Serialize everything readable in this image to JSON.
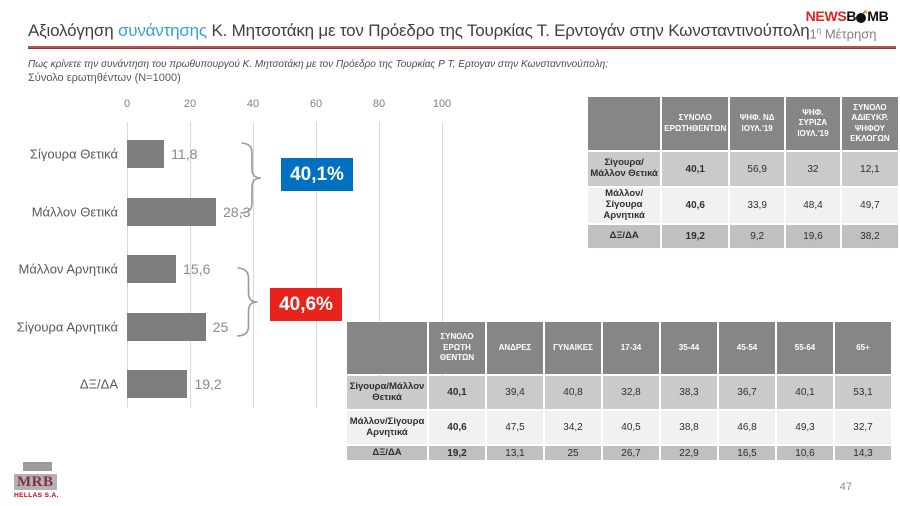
{
  "header": {
    "title_prefix": "Αξιολόγηση ",
    "title_highlight": "συνάντησης",
    "title_rest": "  Κ. Μητσοτάκη με τον Πρόεδρο της Τουρκίας Τ. Ερντογάν στην Κωνσταντινούπολη",
    "brand": {
      "part1": "NEWS",
      "part2": "B",
      "part3": "MB"
    },
    "measurement": {
      "number": "1",
      "sup": "η",
      "label": " Μέτρηση"
    }
  },
  "question": {
    "line1": "Πως κρίνετε την συνάντηση του πρωθυπουργού  Κ. Μητσοτάκη με τον Πρόεδρο της Τουρκίας Ρ Τ, Ερτογαν στην Κωνσταντινούπολη;",
    "line2": "Σύνολο ερωτηθέντων (N=1000)"
  },
  "chart_data": {
    "type": "bar",
    "orientation": "horizontal",
    "title": "Αξιολόγηση συνάντησης Κ. Μητσοτάκη με τον Πρόεδρο της Τουρκίας Τ. Ερντογάν στην Κωνσταντινούπολη",
    "categories": [
      "Σίγουρα Θετικά",
      "Μάλλον Θετικά",
      "Μάλλον Αρνητικά",
      "Σίγουρα Αρνητικά",
      "ΔΞ/ΔΑ"
    ],
    "values": [
      11.8,
      28.3,
      15.6,
      25,
      19.2
    ],
    "value_labels": [
      "11,8",
      "28,3",
      "15,6",
      "25",
      "19,2"
    ],
    "xlim": [
      0,
      100
    ],
    "x_ticks": [
      "0",
      "20",
      "40",
      "60",
      "80",
      "100"
    ],
    "grid": true,
    "bar_color": "#7d7d7d",
    "annotations": [
      {
        "label": "40,1%",
        "color": "#0070c0",
        "meaning": "Σύνολο Σίγουρα/Μάλλον Θετικά"
      },
      {
        "label": "40,6%",
        "color": "#e8231c",
        "meaning": "Σύνολο Μάλλον/Σίγουρα Αρνητικά"
      }
    ]
  },
  "table_party": {
    "columns": [
      "ΣΥΝΟΛΟ ΕΡΩΤΗΘΕΝΤΩΝ",
      "ΨΗΦ. ΝΔ ΙΟΥΛ.'19",
      "ΨΗΦ. ΣΥΡΙΖΑ ΙΟΥΛ.'19",
      "ΣΥΝΟΛΟ ΑΔΙΕΥΚΡ. ΨΗΦΟΥ ΕΚΛΟΓΩΝ"
    ],
    "rows": [
      {
        "label": "Σίγουρα/Μάλλον Θετικά",
        "values": [
          "40,1",
          "56,9",
          "32",
          "12,1"
        ]
      },
      {
        "label": "Μάλλον/Σίγουρα Αρνητικά",
        "values": [
          "40,6",
          "33,9",
          "48,4",
          "49,7"
        ]
      },
      {
        "label": "ΔΞ/ΔΑ",
        "values": [
          "19,2",
          "9,2",
          "19,6",
          "38,2"
        ]
      }
    ]
  },
  "table_demo": {
    "columns": [
      "ΣΥΝΟΛΟ ΕΡΩΤΗ ΘΕΝΤΩΝ",
      "ΑΝΔΡΕΣ",
      "ΓΥΝΑΙΚΕΣ",
      "17-34",
      "35-44",
      "45-54",
      "55-64",
      "65+"
    ],
    "rows": [
      {
        "label": "Σίγουρα/Μάλλον Θετικά",
        "values": [
          "40,1",
          "39,4",
          "40,8",
          "32,8",
          "38,3",
          "36,7",
          "40,1",
          "53,1"
        ]
      },
      {
        "label": "Μάλλον/Σίγουρα Αρνητικά",
        "values": [
          "40,6",
          "47,5",
          "34,2",
          "40,5",
          "38,8",
          "46,8",
          "49,3",
          "32,7"
        ]
      },
      {
        "label": "ΔΞ/ΔΑ",
        "values": [
          "19,2",
          "13,1",
          "25",
          "26,7",
          "22,9",
          "16,5",
          "10,6",
          "14,3"
        ]
      }
    ]
  },
  "footer": {
    "logo_text": "MRB",
    "logo_sub": "HELLAS S.A.",
    "page_number": "47"
  },
  "colors": {
    "accent_blue": "#0070c0",
    "accent_red": "#e8231c",
    "title_highlight": "#36a0d8",
    "rule_red": "#b25450",
    "table_header": "#868686",
    "bar": "#7d7d7d"
  }
}
